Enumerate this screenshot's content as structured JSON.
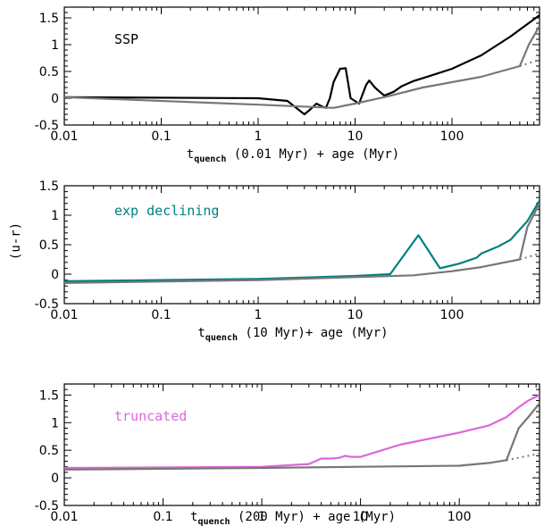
{
  "ylabel": "(u-r)",
  "chart_data": [
    {
      "type": "line",
      "annotation": "SSP",
      "xlabel_main": "t",
      "xlabel_sub": "quench",
      "xlabel_rest": " (0.01 Myr) + age (Myr)",
      "x_scale": "log",
      "xlim": [
        0.01,
        800
      ],
      "ylim": [
        -0.5,
        1.7
      ],
      "xticks": [
        0.01,
        0.1,
        1,
        10,
        100
      ],
      "xtick_labels": [
        "0.01",
        "0.1",
        "1",
        "10",
        "100"
      ],
      "yticks": [
        -0.5,
        0,
        0.5,
        1,
        1.5
      ],
      "ytick_labels": [
        "-0.5",
        "0",
        "0.5",
        "1",
        "1.5"
      ],
      "series": [
        {
          "color": "#000000",
          "style": "solid",
          "x": [
            0.01,
            1,
            2,
            3,
            3.5,
            4,
            4.5,
            5,
            5.5,
            6,
            7,
            8,
            9,
            11,
            13,
            14,
            16,
            18,
            20,
            25,
            30,
            40,
            60,
            100,
            200,
            400,
            800
          ],
          "y": [
            0.02,
            0,
            -0.05,
            -0.3,
            -0.2,
            -0.1,
            -0.15,
            -0.18,
            0.0,
            0.3,
            0.55,
            0.56,
            0.0,
            -0.1,
            0.25,
            0.33,
            0.2,
            0.12,
            0.05,
            0.12,
            0.22,
            0.32,
            0.42,
            0.55,
            0.8,
            1.15,
            1.55
          ]
        },
        {
          "color": "#777777",
          "style": "solid",
          "x": [
            0.01,
            1,
            6,
            10,
            20,
            50,
            100,
            200,
            500,
            620,
            800
          ],
          "y": [
            0.02,
            -0.12,
            -0.18,
            -0.1,
            0.02,
            0.2,
            0.3,
            0.4,
            0.6,
            1.0,
            1.35
          ]
        },
        {
          "color": "#777777",
          "style": "dotted",
          "x": [
            500,
            800
          ],
          "y": [
            0.6,
            0.72
          ]
        }
      ]
    },
    {
      "type": "line",
      "annotation": "exp declining",
      "xlabel_main": "t",
      "xlabel_sub": "quench",
      "xlabel_rest": " (10 Myr)+ age (Myr)",
      "x_scale": "log",
      "xlim": [
        0.01,
        800
      ],
      "ylim": [
        -0.5,
        1.5
      ],
      "xticks": [
        0.01,
        0.1,
        1,
        10,
        100
      ],
      "xtick_labels": [
        "0.01",
        "0.1",
        "1",
        "10",
        "100"
      ],
      "yticks": [
        -0.5,
        0,
        0.5,
        1,
        1.5
      ],
      "ytick_labels": [
        "-0.5",
        "0",
        "0.5",
        "1",
        "1.5"
      ],
      "series": [
        {
          "color": "#008080",
          "style": "solid",
          "x": [
            0.01,
            1,
            10,
            23,
            45,
            75,
            120,
            180,
            200,
            300,
            400,
            600,
            800
          ],
          "y": [
            -0.12,
            -0.08,
            -0.03,
            0.0,
            0.66,
            0.1,
            0.18,
            0.28,
            0.35,
            0.47,
            0.58,
            0.9,
            1.25
          ]
        },
        {
          "color": "#777777",
          "style": "solid",
          "x": [
            0.01,
            1,
            10,
            40,
            100,
            200,
            500,
            600,
            800
          ],
          "y": [
            -0.15,
            -0.1,
            -0.05,
            -0.02,
            0.05,
            0.12,
            0.25,
            0.8,
            1.2
          ]
        },
        {
          "color": "#777777",
          "style": "dotted",
          "x": [
            500,
            800
          ],
          "y": [
            0.25,
            0.35
          ]
        }
      ]
    },
    {
      "type": "line",
      "annotation": "truncated",
      "xlabel_main": "t",
      "xlabel_sub": "quench",
      "xlabel_rest": " (200 Myr) + age (Myr)",
      "x_scale": "log",
      "xlim": [
        0.01,
        650
      ],
      "ylim": [
        -0.5,
        1.7
      ],
      "xticks": [
        0.01,
        0.1,
        1,
        10,
        100
      ],
      "xtick_labels": [
        "0.01",
        "0.1",
        "1",
        "10",
        "100"
      ],
      "yticks": [
        -0.5,
        0,
        0.5,
        1,
        1.5
      ],
      "ytick_labels": [
        "-0.5",
        "0",
        "0.5",
        "1",
        "1.5"
      ],
      "series": [
        {
          "color": "#dd66dd",
          "style": "solid",
          "x": [
            0.01,
            1,
            3,
            4,
            5,
            6,
            7,
            8,
            10,
            25,
            100,
            200,
            300,
            400,
            500,
            650
          ],
          "y": [
            0.18,
            0.2,
            0.25,
            0.35,
            0.35,
            0.36,
            0.4,
            0.38,
            0.38,
            0.6,
            0.82,
            0.95,
            1.1,
            1.28,
            1.4,
            1.5
          ]
        },
        {
          "color": "#777777",
          "style": "solid",
          "x": [
            0.01,
            1,
            10,
            100,
            200,
            300,
            400,
            500,
            650
          ],
          "y": [
            0.15,
            0.18,
            0.2,
            0.22,
            0.27,
            0.32,
            0.9,
            1.1,
            1.35
          ]
        },
        {
          "color": "#777777",
          "style": "dotted",
          "x": [
            300,
            650
          ],
          "y": [
            0.32,
            0.44
          ]
        }
      ]
    }
  ]
}
